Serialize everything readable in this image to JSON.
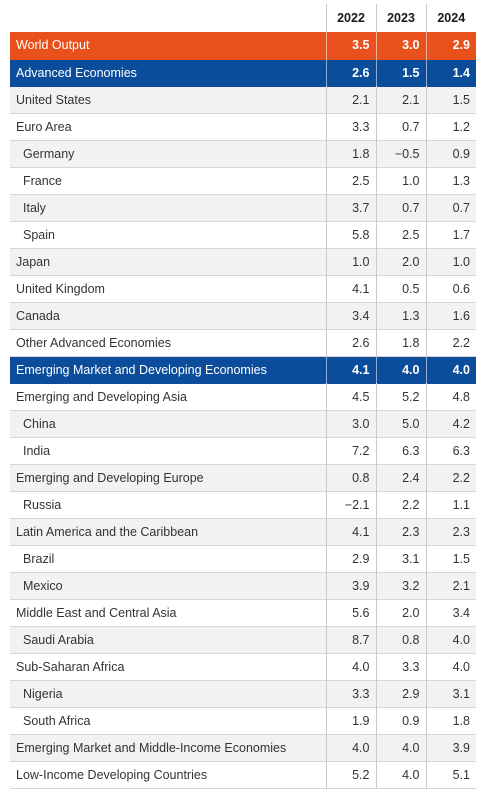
{
  "table": {
    "columns": [
      "2022",
      "2023",
      "2024"
    ],
    "rows": [
      {
        "label": "World Output",
        "values": [
          "3.5",
          "3.0",
          "2.9"
        ],
        "style": "orange",
        "indent": false
      },
      {
        "label": "Advanced Economies",
        "values": [
          "2.6",
          "1.5",
          "1.4"
        ],
        "style": "blue",
        "indent": false
      },
      {
        "label": "United States",
        "values": [
          "2.1",
          "2.1",
          "1.5"
        ],
        "style": "",
        "indent": false
      },
      {
        "label": "Euro Area",
        "values": [
          "3.3",
          "0.7",
          "1.2"
        ],
        "style": "",
        "indent": false
      },
      {
        "label": "Germany",
        "values": [
          "1.8",
          "−0.5",
          "0.9"
        ],
        "style": "",
        "indent": true
      },
      {
        "label": "France",
        "values": [
          "2.5",
          "1.0",
          "1.3"
        ],
        "style": "",
        "indent": true
      },
      {
        "label": "Italy",
        "values": [
          "3.7",
          "0.7",
          "0.7"
        ],
        "style": "",
        "indent": true
      },
      {
        "label": "Spain",
        "values": [
          "5.8",
          "2.5",
          "1.7"
        ],
        "style": "",
        "indent": true
      },
      {
        "label": "Japan",
        "values": [
          "1.0",
          "2.0",
          "1.0"
        ],
        "style": "",
        "indent": false
      },
      {
        "label": "United Kingdom",
        "values": [
          "4.1",
          "0.5",
          "0.6"
        ],
        "style": "",
        "indent": false
      },
      {
        "label": "Canada",
        "values": [
          "3.4",
          "1.3",
          "1.6"
        ],
        "style": "",
        "indent": false
      },
      {
        "label": "Other Advanced Economies",
        "values": [
          "2.6",
          "1.8",
          "2.2"
        ],
        "style": "",
        "indent": false
      },
      {
        "label": "Emerging Market and Developing Economies",
        "values": [
          "4.1",
          "4.0",
          "4.0"
        ],
        "style": "blue",
        "indent": false
      },
      {
        "label": "Emerging and Developing Asia",
        "values": [
          "4.5",
          "5.2",
          "4.8"
        ],
        "style": "",
        "indent": false
      },
      {
        "label": "China",
        "values": [
          "3.0",
          "5.0",
          "4.2"
        ],
        "style": "",
        "indent": true
      },
      {
        "label": "India",
        "values": [
          "7.2",
          "6.3",
          "6.3"
        ],
        "style": "",
        "indent": true
      },
      {
        "label": "Emerging and Developing Europe",
        "values": [
          "0.8",
          "2.4",
          "2.2"
        ],
        "style": "",
        "indent": false
      },
      {
        "label": "Russia",
        "values": [
          "−2.1",
          "2.2",
          "1.1"
        ],
        "style": "",
        "indent": true
      },
      {
        "label": "Latin America and the Caribbean",
        "values": [
          "4.1",
          "2.3",
          "2.3"
        ],
        "style": "",
        "indent": false
      },
      {
        "label": "Brazil",
        "values": [
          "2.9",
          "3.1",
          "1.5"
        ],
        "style": "",
        "indent": true
      },
      {
        "label": "Mexico",
        "values": [
          "3.9",
          "3.2",
          "2.1"
        ],
        "style": "",
        "indent": true
      },
      {
        "label": "Middle East and Central Asia",
        "values": [
          "5.6",
          "2.0",
          "3.4"
        ],
        "style": "",
        "indent": false
      },
      {
        "label": "Saudi Arabia",
        "values": [
          "8.7",
          "0.8",
          "4.0"
        ],
        "style": "",
        "indent": true
      },
      {
        "label": "Sub-Saharan Africa",
        "values": [
          "4.0",
          "3.3",
          "4.0"
        ],
        "style": "",
        "indent": false
      },
      {
        "label": "Nigeria",
        "values": [
          "3.3",
          "2.9",
          "3.1"
        ],
        "style": "",
        "indent": true
      },
      {
        "label": "South Africa",
        "values": [
          "1.9",
          "0.9",
          "1.8"
        ],
        "style": "",
        "indent": true
      },
      {
        "label": "Emerging Market and Middle-Income Economies",
        "values": [
          "4.0",
          "4.0",
          "3.9"
        ],
        "style": "",
        "indent": false
      },
      {
        "label": "Low-Income Developing Countries",
        "values": [
          "5.2",
          "4.0",
          "5.1"
        ],
        "style": "",
        "indent": false
      }
    ]
  },
  "colors": {
    "highlight_orange": "#e8501c",
    "highlight_blue": "#0b4d9b",
    "stripe": "#f2f2f2"
  }
}
